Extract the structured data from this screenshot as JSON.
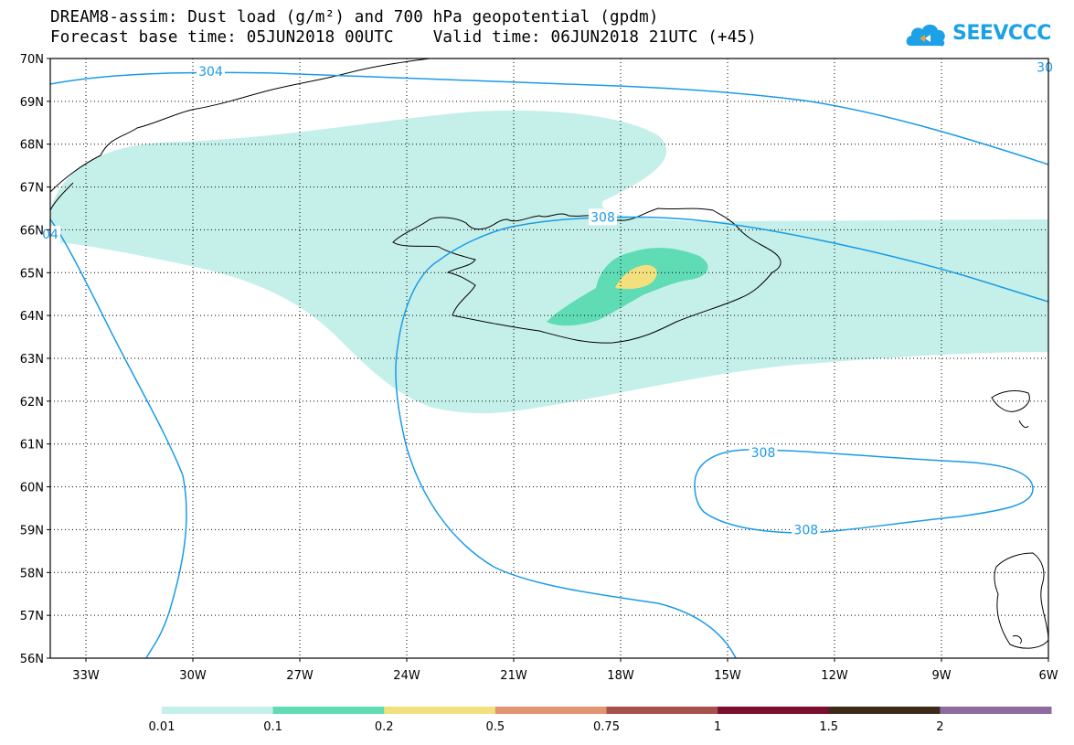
{
  "title": {
    "line1": "DREAM8-assim: Dust load (g/m²) and 700 hPa geopotential (gpdm)",
    "line2": "Forecast base time: 05JUN2018 00UTC    Valid time: 06JUN2018 21UTC (+45)"
  },
  "logo": {
    "text": "SEEVCCC",
    "icon": "cloud-logo-icon",
    "color": "#1da1e6"
  },
  "map": {
    "projection": "lat-lon",
    "lon_range": [
      -34,
      -6
    ],
    "lat_range": [
      56,
      70
    ],
    "lat_ticks": [
      "70N",
      "69N",
      "68N",
      "67N",
      "66N",
      "65N",
      "64N",
      "63N",
      "62N",
      "61N",
      "60N",
      "59N",
      "58N",
      "57N",
      "56N"
    ],
    "lon_ticks": [
      "33W",
      "30W",
      "27W",
      "24W",
      "21W",
      "18W",
      "15W",
      "12W",
      "9W",
      "6W"
    ],
    "gridlines": "dotted",
    "contour_color": "#1a9be6",
    "contour_labels": [
      {
        "text": "304",
        "lon": -29.5,
        "lat": 69.7
      },
      {
        "text": "308",
        "lon": -18.5,
        "lat": 66.3
      },
      {
        "text": "308",
        "lon": -14.0,
        "lat": 60.8
      },
      {
        "text": "308",
        "lon": -12.8,
        "lat": 59.0
      },
      {
        "text": "04",
        "lon": -34.0,
        "lat": 65.9
      },
      {
        "text": "30",
        "lon": -6.1,
        "lat": 69.8
      }
    ]
  },
  "colorbar": {
    "thresholds": [
      "0.01",
      "0.1",
      "0.2",
      "0.5",
      "0.75",
      "1",
      "1.5",
      "2"
    ],
    "colors": [
      "#c5f0ea",
      "#5fdcb4",
      "#f2e07f",
      "#e39471",
      "#a8504a",
      "#7a0e2c",
      "#3e2b17",
      "#8e6a9f"
    ]
  }
}
